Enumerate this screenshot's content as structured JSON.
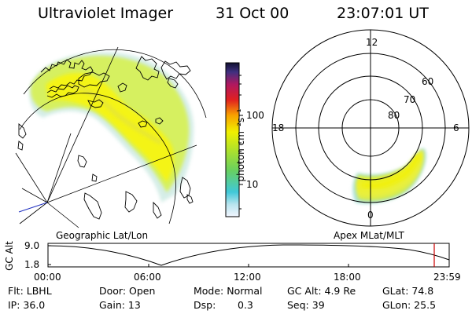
{
  "header": {
    "instrument": "Ultraviolet Imager",
    "date": "31 Oct 00",
    "time": "23:07:01 UT"
  },
  "colorbar": {
    "label": "photon cm⁻²s⁻¹",
    "ticks": [
      "100",
      "10"
    ]
  },
  "polar_plot": {
    "mlt_labels": [
      "12",
      "18",
      "6",
      "0"
    ],
    "mlat_labels": [
      "60",
      "70",
      "80"
    ]
  },
  "projection_labels": {
    "left": "Geographic Lat/Lon",
    "right": "Apex MLat/MLT"
  },
  "altitude_plot": {
    "ylabel": "GC Alt",
    "yticks": [
      "9.0",
      "1.8"
    ],
    "xticks": [
      "00:00",
      "06:00",
      "12:00",
      "18:00",
      "23:59"
    ],
    "marker_color": "#cc0000"
  },
  "status": {
    "flt": "Flt: LBHL",
    "ip": "IP: 36.0",
    "door": "Door: Open",
    "gain": "Gain: 13",
    "mode": "Mode: Normal",
    "dsp_label": "Dsp:",
    "dsp_value": "0.3",
    "gc_alt": "GC Alt: 4.9 Re",
    "seq": "Seq: 39",
    "glat": "GLat: 74.8",
    "glon": "GLon: 25.5"
  }
}
